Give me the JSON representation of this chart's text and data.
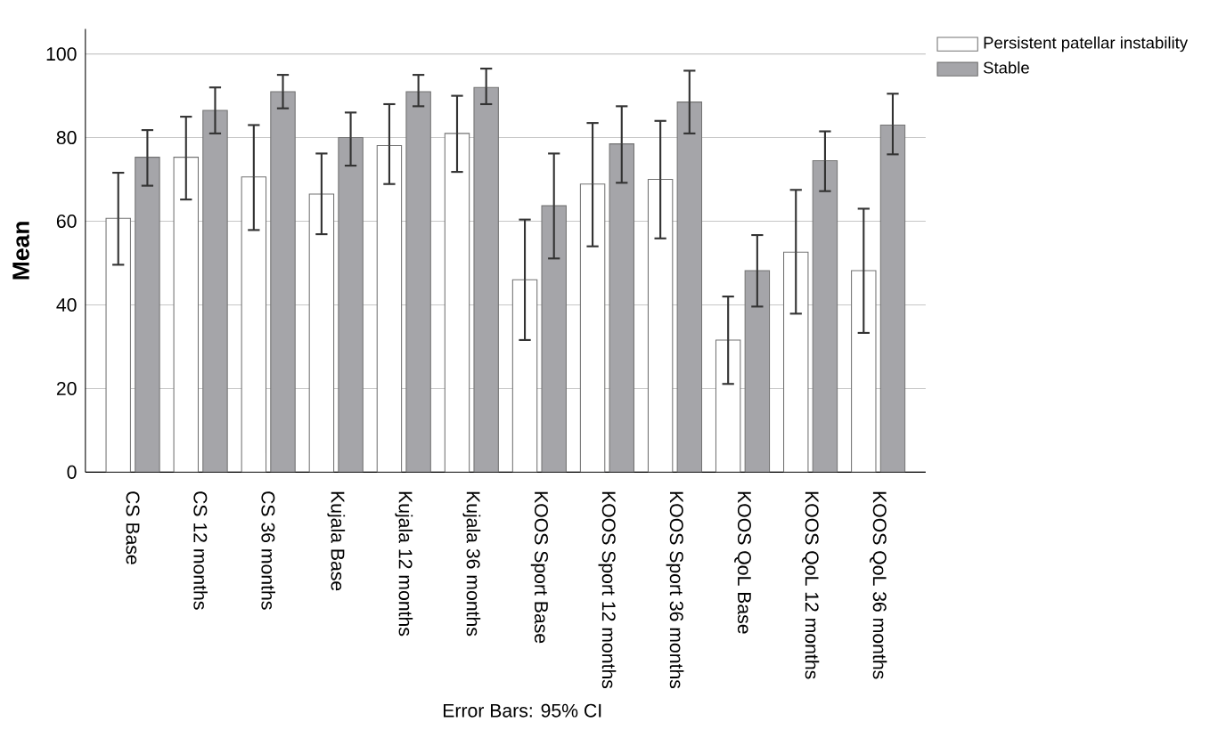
{
  "chart_data": {
    "type": "bar",
    "ylabel": "Mean",
    "categories": [
      "CS Base",
      "CS 12 months",
      "CS 36 months",
      "Kujala Base",
      "Kujala 12 months",
      "Kujala 36 months",
      "KOOS Sport Base",
      "KOOS Sport 12 months",
      "KOOS Sport 36 months",
      "KOOS QoL Base",
      "KOOS QoL 12 months",
      "KOOS QoL 36 months"
    ],
    "series": [
      {
        "name": "Persistent patellar instability",
        "color": "#ffffff",
        "values": [
          60.7,
          75.3,
          70.6,
          66.5,
          78.1,
          81,
          46,
          68.9,
          70,
          31.6,
          52.6,
          48.2
        ],
        "errors": [
          [
            49.6,
            71.6
          ],
          [
            65.2,
            85
          ],
          [
            57.9,
            83
          ],
          [
            56.9,
            76.2
          ],
          [
            68.9,
            88
          ],
          [
            71.8,
            90
          ],
          [
            31.6,
            60.4
          ],
          [
            54,
            83.5
          ],
          [
            55.9,
            84
          ],
          [
            21.1,
            42
          ],
          [
            37.9,
            67.5
          ],
          [
            33.3,
            63
          ]
        ]
      },
      {
        "name": "Stable",
        "color": "#a5a5a9",
        "values": [
          75.3,
          86.5,
          91,
          80,
          91,
          92,
          63.7,
          78.5,
          88.5,
          48.2,
          74.5,
          83
        ],
        "errors": [
          [
            68.5,
            81.8
          ],
          [
            81,
            92
          ],
          [
            87,
            95
          ],
          [
            73.3,
            86
          ],
          [
            87.5,
            95
          ],
          [
            88,
            96.5
          ],
          [
            51.1,
            76.2
          ],
          [
            69.2,
            87.5
          ],
          [
            81,
            96
          ],
          [
            39.6,
            56.7
          ],
          [
            67.2,
            81.5
          ],
          [
            76,
            90.5
          ]
        ]
      }
    ],
    "ylim": [
      0,
      106
    ],
    "yticks": [
      0,
      20,
      40,
      60,
      80,
      100
    ],
    "grid": "y",
    "legend": "top right",
    "annotations": [
      "Error Bars: 95% CI"
    ]
  }
}
